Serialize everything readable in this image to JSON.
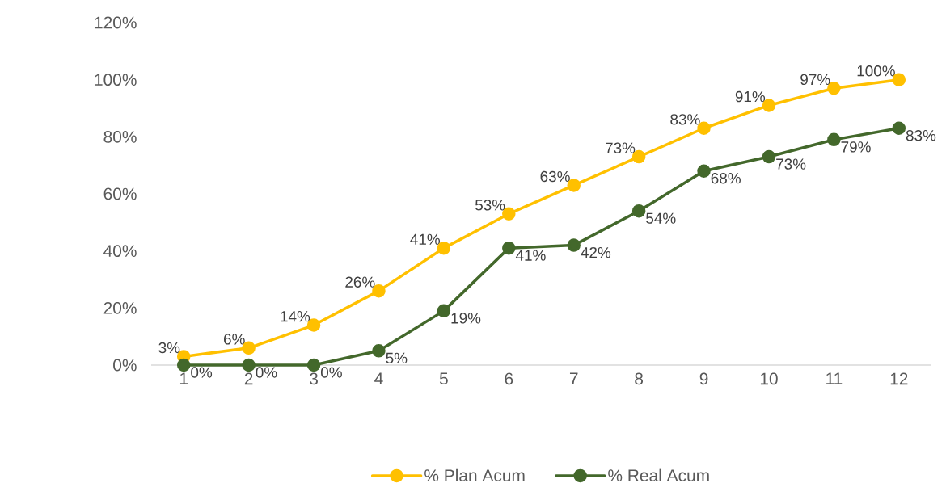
{
  "chart_data": {
    "type": "line",
    "categories": [
      "1",
      "2",
      "3",
      "4",
      "5",
      "6",
      "7",
      "8",
      "9",
      "10",
      "11",
      "12"
    ],
    "series": [
      {
        "name": "% Plan Acum",
        "color": "#ffc000",
        "values": [
          3,
          6,
          14,
          26,
          41,
          53,
          63,
          73,
          83,
          91,
          97,
          100
        ],
        "value_labels": [
          "3%",
          "6%",
          "14%",
          "26%",
          "41%",
          "53%",
          "63%",
          "73%",
          "83%",
          "91%",
          "97%",
          "100%"
        ]
      },
      {
        "name": "% Real Acum",
        "color": "#43682b",
        "values": [
          0,
          0,
          0,
          5,
          19,
          41,
          42,
          54,
          68,
          73,
          79,
          83
        ],
        "value_labels": [
          "0%",
          "0%",
          "0%",
          "5%",
          "19%",
          "41%",
          "42%",
          "54%",
          "68%",
          "73%",
          "79%",
          "83%"
        ]
      }
    ],
    "ylim": [
      0,
      120
    ],
    "yticks": [
      {
        "value": 0,
        "label": "0%"
      },
      {
        "value": 20,
        "label": "20%"
      },
      {
        "value": 40,
        "label": "40%"
      },
      {
        "value": 60,
        "label": "60%"
      },
      {
        "value": 80,
        "label": "80%"
      },
      {
        "value": 100,
        "label": "100%"
      },
      {
        "value": 120,
        "label": "120%"
      }
    ],
    "legend": "bottom",
    "marker": "circle",
    "line_style": "solid",
    "grid": false
  }
}
